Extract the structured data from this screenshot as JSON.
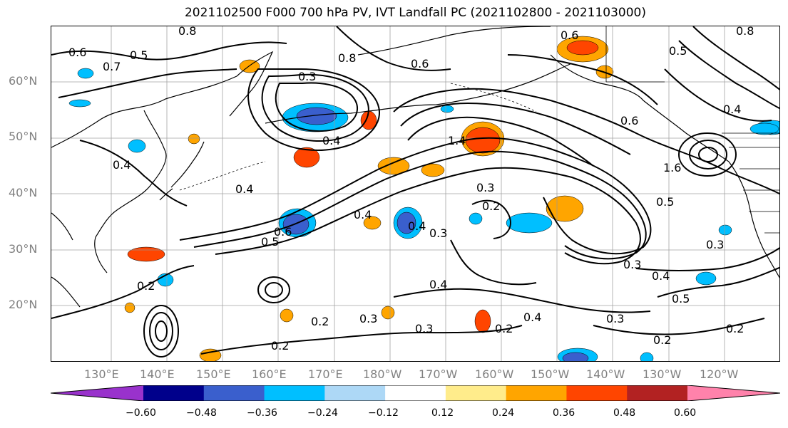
{
  "title": "2021102500 F000 700 hPa PV, IVT Landfall PC (2021102800 - 2021103000)",
  "lat_labels": [
    "60°N",
    "50°N",
    "40°N",
    "30°N",
    "20°N"
  ],
  "lon_labels": [
    "130°E",
    "140°E",
    "150°E",
    "160°E",
    "170°E",
    "180°W",
    "170°W",
    "160°W",
    "150°W",
    "140°W",
    "130°W",
    "120°W"
  ],
  "colorbar": {
    "ticks": [
      "−0.60",
      "−0.48",
      "−0.36",
      "−0.24",
      "−0.12",
      "0.12",
      "0.24",
      "0.36",
      "0.48",
      "0.60"
    ],
    "colors": [
      "#9932CC",
      "#00008B",
      "#3A5FCD",
      "#00BFFF",
      "#ADD8F6",
      "#FFFFFF",
      "#FFEC8B",
      "#FFA500",
      "#FF4500",
      "#B22222",
      "#FF82AB"
    ]
  },
  "contour_labels": [
    {
      "text": "0.8"
    },
    {
      "text": "0.6"
    },
    {
      "text": "0.5"
    },
    {
      "text": "0.7"
    },
    {
      "text": "0.8"
    },
    {
      "text": "0.6"
    },
    {
      "text": "0.3"
    },
    {
      "text": "0.4"
    },
    {
      "text": "0.4"
    },
    {
      "text": "0.4"
    },
    {
      "text": "0.4"
    },
    {
      "text": "0.6"
    },
    {
      "text": "0.5"
    },
    {
      "text": "0.4"
    },
    {
      "text": "0.3"
    },
    {
      "text": "0.2"
    },
    {
      "text": "0.3"
    },
    {
      "text": "0.5"
    },
    {
      "text": "0.3"
    },
    {
      "text": "0.4"
    },
    {
      "text": "0.5"
    },
    {
      "text": "0.2"
    },
    {
      "text": "0.4"
    },
    {
      "text": "0.2"
    },
    {
      "text": "0.3"
    },
    {
      "text": "0.2"
    },
    {
      "text": "0.3"
    },
    {
      "text": "0.2"
    },
    {
      "text": "0.3"
    },
    {
      "text": "0.2"
    },
    {
      "text": "0.2"
    },
    {
      "text": "0.4"
    },
    {
      "text": "0.5"
    },
    {
      "text": "0.8"
    },
    {
      "text": "0.4"
    },
    {
      "text": "0.3"
    },
    {
      "text": "0.6"
    },
    {
      "text": "1.4"
    },
    {
      "text": "1.6"
    },
    {
      "text": "0.6"
    }
  ]
}
